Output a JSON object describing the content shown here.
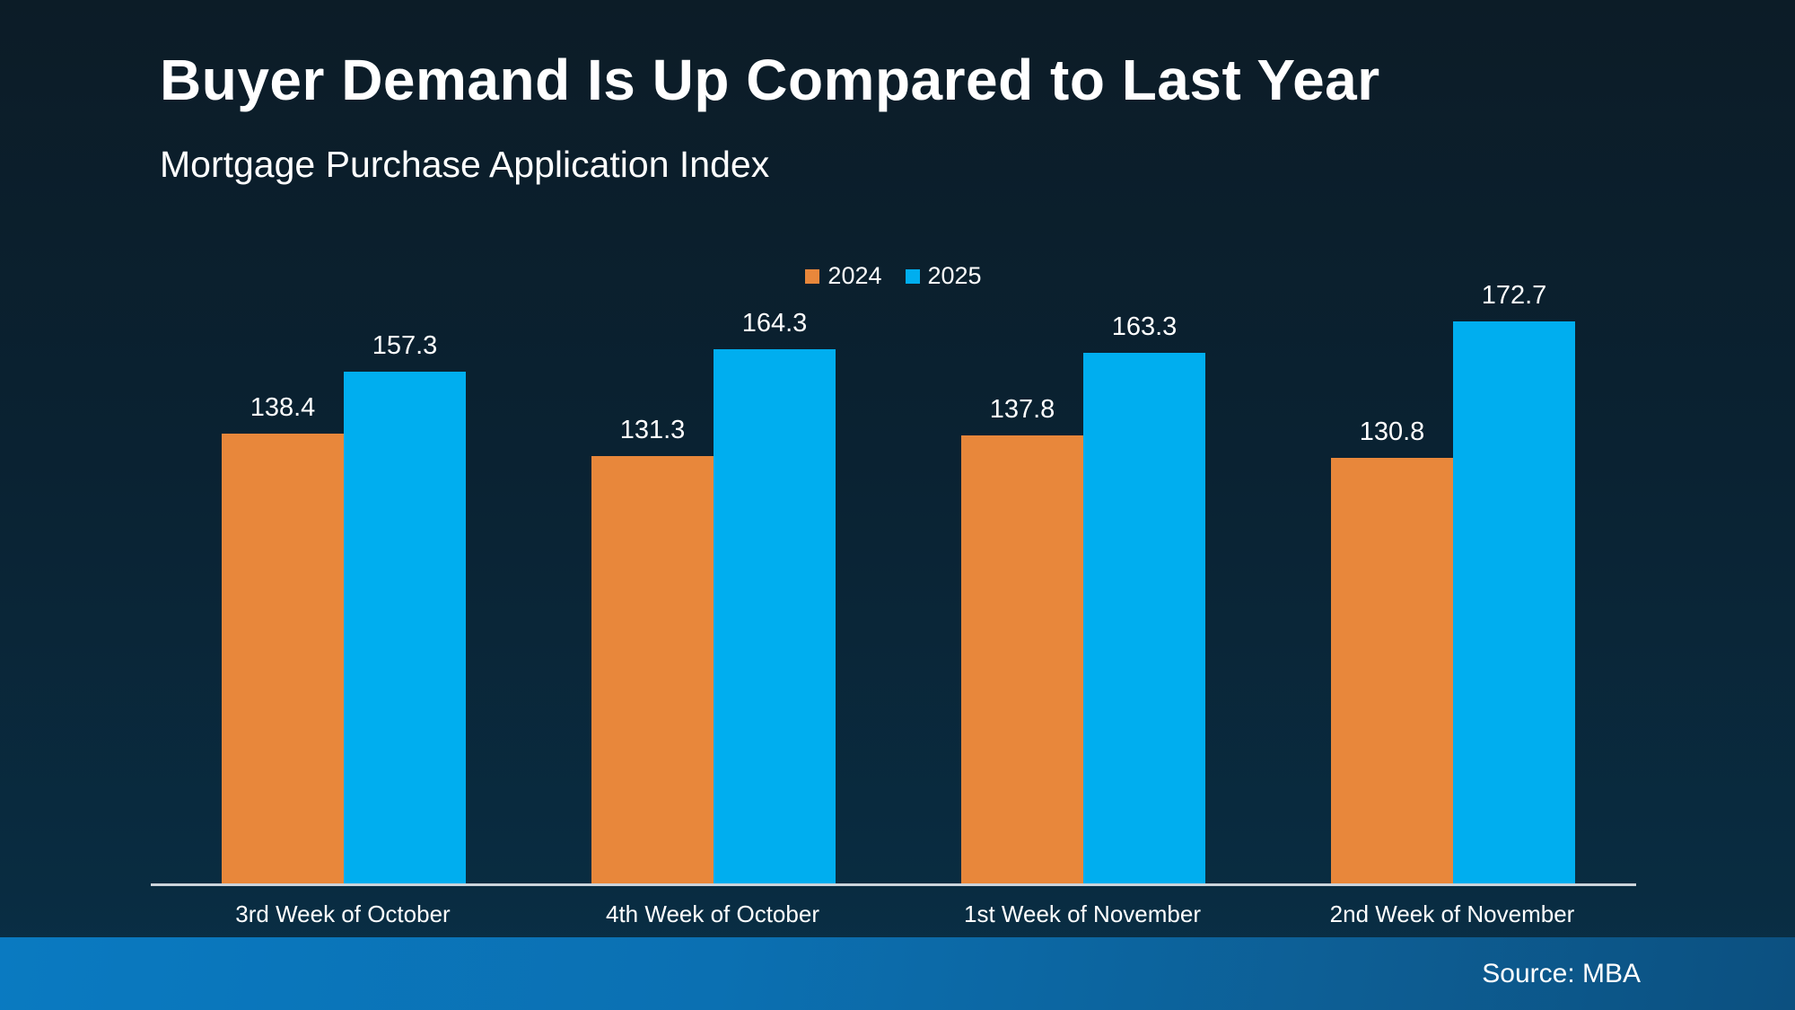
{
  "header": {
    "title": "Buyer Demand Is Up Compared to Last Year",
    "subtitle": "Mortgage Purchase Application Index"
  },
  "chart_data": {
    "type": "bar",
    "title": "Buyer Demand Is Up Compared to Last Year",
    "subtitle": "Mortgage Purchase Application Index",
    "categories": [
      "3rd Week of October",
      "4th Week of October",
      "1st Week of November",
      "2nd Week of November"
    ],
    "series": [
      {
        "name": "2024",
        "color": "#E8873B",
        "values": [
          138.4,
          131.3,
          137.8,
          130.8
        ]
      },
      {
        "name": "2025",
        "color": "#00AEEF",
        "values": [
          157.3,
          164.3,
          163.3,
          172.7
        ]
      }
    ],
    "xlabel": "",
    "ylabel": "",
    "ylim": [
      0,
      180
    ],
    "y_axis_visible": false,
    "grid": false,
    "value_labels": true,
    "legend_position": "top-center"
  },
  "footer": {
    "source": "Source: MBA"
  },
  "colors": {
    "background": "#0A2232",
    "bar_2024": "#E8873B",
    "bar_2025": "#00AEEF",
    "axis_line": "#CCD4DB",
    "footer_gradient_left": "#0A7AC1",
    "footer_gradient_right": "#0C5080",
    "text": "#FFFFFF"
  }
}
